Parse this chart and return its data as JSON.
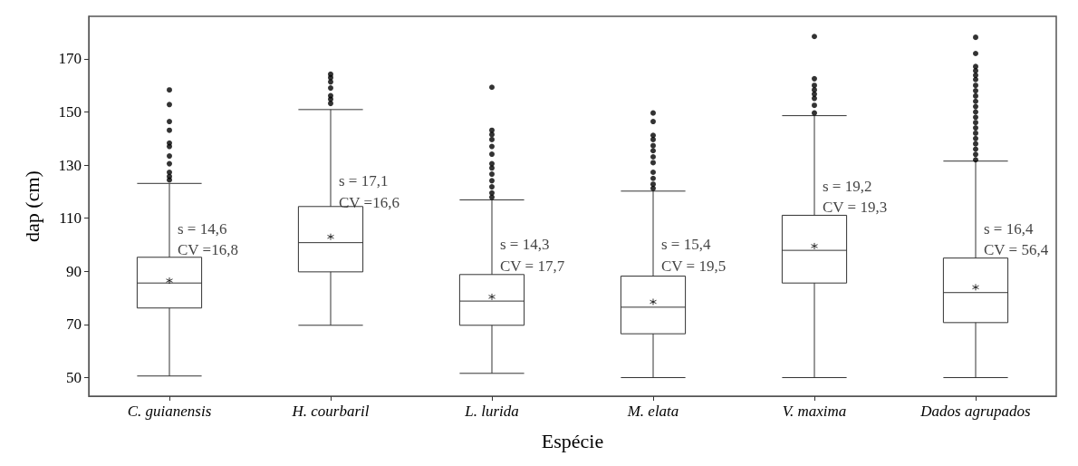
{
  "chart_data": {
    "type": "box",
    "xlabel": "Espécie",
    "ylabel": "dap (cm)",
    "categories": [
      "C. guianensis",
      "H. courbaril",
      "L. lurida",
      "M. elata",
      "V. maxima",
      "Dados agrupados"
    ],
    "boxes": [
      {
        "low": 50.6,
        "q1": 76.2,
        "median": 85.6,
        "q3": 95.3,
        "high": 123.1,
        "mean": 86.5,
        "outliers": [
          158.3,
          152.8,
          146.4,
          143.1,
          138.3,
          137,
          133.4,
          130.5,
          127.3,
          125.7,
          124.4
        ]
      },
      {
        "low": 69.7,
        "q1": 89.8,
        "median": 100.8,
        "q3": 114.4,
        "high": 150.9,
        "mean": 103,
        "outliers": [
          164.2,
          162.9,
          161.3,
          159,
          156.1,
          154.8,
          153.2
        ]
      },
      {
        "low": 51.6,
        "q1": 69.7,
        "median": 78.8,
        "q3": 88.8,
        "high": 116.9,
        "mean": 80.4,
        "outliers": [
          159.3,
          143.1,
          141.5,
          139.6,
          137,
          134.1,
          130.5,
          128.9,
          126.6,
          124.1,
          121.8,
          119.5,
          117.9
        ]
      },
      {
        "low": 50,
        "q1": 66.5,
        "median": 76.5,
        "q3": 88.2,
        "high": 120.2,
        "mean": 78.5,
        "outliers": [
          149.6,
          146.4,
          141.2,
          139.6,
          137.3,
          135.4,
          133.1,
          130.9,
          127.3,
          125,
          122.8,
          121.2
        ]
      },
      {
        "low": 50,
        "q1": 85.6,
        "median": 97.9,
        "q3": 111.1,
        "high": 148.6,
        "mean": 99.5,
        "outliers": [
          178.4,
          162.5,
          160,
          158.3,
          156.7,
          155.1,
          152.5,
          149.6
        ]
      },
      {
        "low": 50,
        "q1": 70.7,
        "median": 82,
        "q3": 95,
        "high": 131.5,
        "mean": 84,
        "outliers": [
          178.1,
          172,
          167.1,
          165.5,
          163.8,
          162.2,
          160,
          158,
          156,
          154,
          152,
          150,
          148,
          146,
          144,
          142,
          140,
          138,
          136,
          134,
          132
        ]
      }
    ],
    "ylim": [
      43,
      186
    ],
    "yticks": [
      50,
      70,
      90,
      110,
      130,
      150,
      170
    ],
    "annotations": [
      {
        "text": "s = 14,6",
        "x": "C. guianensis",
        "y": 106
      },
      {
        "text": "CV =16,8",
        "x": "C. guianensis",
        "y": 98
      },
      {
        "text": "s = 17,1",
        "x": "H. courbaril",
        "y": 124
      },
      {
        "text": "CV =16,6",
        "x": "H. courbaril",
        "y": 116
      },
      {
        "text": "s = 14,3",
        "x": "L. lurida",
        "y": 100
      },
      {
        "text": "CV = 17,7",
        "x": "L. lurida",
        "y": 92
      },
      {
        "text": "s = 15,4",
        "x": "M. elata",
        "y": 100
      },
      {
        "text": "CV = 19,5",
        "x": "M. elata",
        "y": 92
      },
      {
        "text": "s = 19,2",
        "x": "V. maxima",
        "y": 122
      },
      {
        "text": "CV = 19,3",
        "x": "V. maxima",
        "y": 114
      },
      {
        "text": "s = 16,4",
        "x": "Dados agrupados",
        "y": 106
      },
      {
        "text": "CV = 56,4",
        "x": "Dados agrupados",
        "y": 98
      }
    ]
  }
}
